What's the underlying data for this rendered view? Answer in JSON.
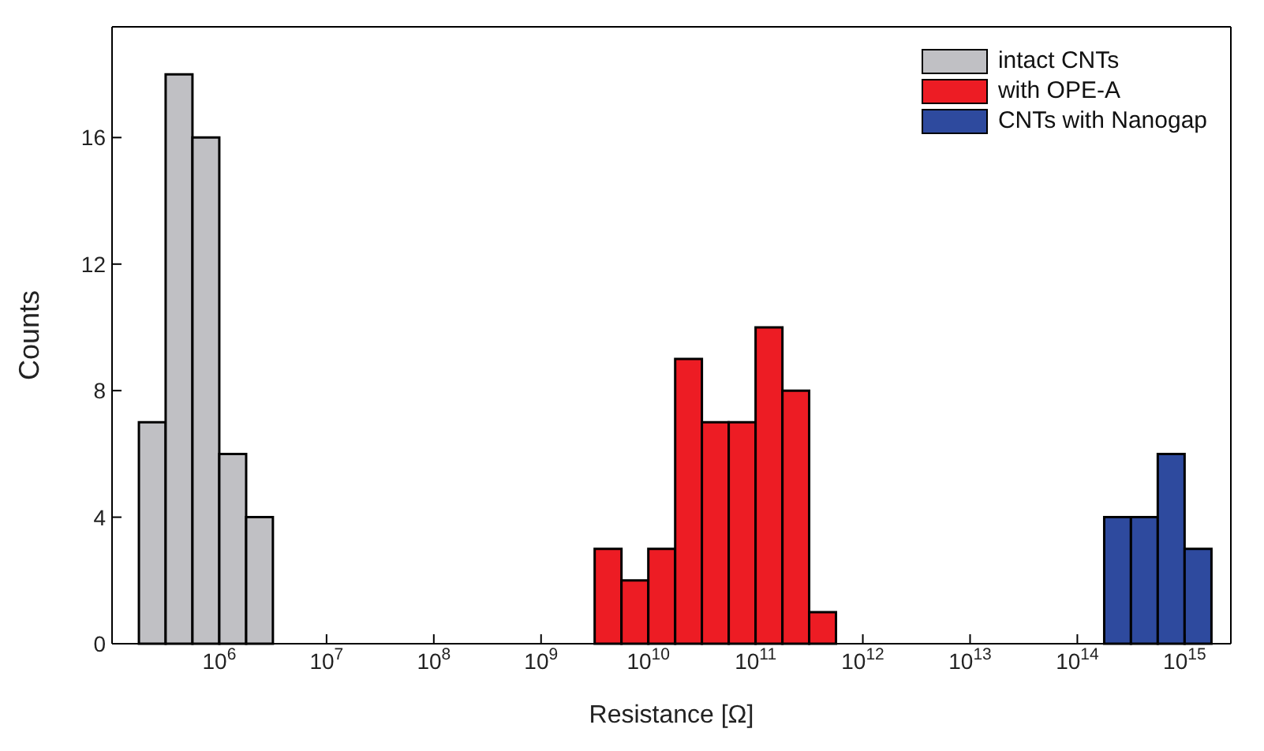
{
  "chart_data": {
    "type": "histogram",
    "xlabel": "Resistance [Ω]",
    "ylabel": "Counts",
    "log": "x",
    "legend": "top right",
    "xlim": [
      100000,
      2700000000000000.0
    ],
    "ylim": [
      0,
      19.5
    ],
    "yticks": [
      0,
      4,
      8,
      12,
      16
    ],
    "xticks": [
      {
        "value": 1000000.0,
        "label": "10$^{6}$"
      },
      {
        "value": 10000000.0,
        "label": "10$^{7}$"
      },
      {
        "value": 100000000.0,
        "label": "10$^{8}$"
      },
      {
        "value": 1000000000.0,
        "label": "10$^{9}$"
      },
      {
        "value": 10000000000.0,
        "label": "10$^{10}$"
      },
      {
        "value": 100000000000.0,
        "label": "10$^{11}$"
      },
      {
        "value": 1000000000000.0,
        "label": "10$^{12}$"
      },
      {
        "value": 10000000000000.0,
        "label": "10$^{13}$"
      },
      {
        "value": 100000000000000.0,
        "label": "10$^{14}$"
      },
      {
        "value": 1000000000000000.0,
        "label": "10$^{15}$"
      }
    ],
    "bins": [
      178000.0,
      316000.0,
      562000.0,
      1000000.0,
      1780000.0,
      3160000.0,
      5620000.0,
      10000000.0,
      17800000.0,
      31600000.0,
      56200000.0,
      100000000.0,
      178000000.0,
      316000000.0,
      562000000.0,
      1000000000.0,
      1780000000.0,
      3160000000.0,
      5620000000.0,
      10000000000.0,
      17800000000.0,
      31600000000.0,
      56200000000.0,
      100000000000.0,
      178000000000.0,
      316000000000.0,
      562000000000.0,
      1000000000000.0,
      1780000000000.0,
      3160000000000.0,
      5620000000000.0,
      10000000000000.0,
      17800000000000.0,
      31600000000000.0,
      56200000000000.0,
      100000000000000.0,
      178000000000000.0,
      316000000000000.0,
      562000000000000.0,
      1000000000000000.0,
      1780000000000000.0
    ],
    "series": [
      {
        "name": "intact CNTs",
        "color": "#c0c0c4",
        "values": [
          7,
          18,
          16,
          6,
          4,
          null,
          null,
          null,
          null,
          null,
          null,
          null,
          null,
          null,
          null,
          null,
          null,
          null,
          null,
          null,
          null,
          null,
          null,
          null,
          null,
          null,
          null,
          null,
          null,
          null,
          null,
          null,
          null,
          null,
          null,
          null,
          null,
          null,
          null,
          null
        ]
      },
      {
        "name": "with OPE-A",
        "color": "#ed1c24",
        "values": [
          null,
          null,
          null,
          null,
          null,
          null,
          null,
          null,
          null,
          null,
          null,
          null,
          null,
          null,
          null,
          null,
          null,
          3,
          2,
          3,
          9,
          7,
          7,
          10,
          8,
          1,
          null,
          null,
          null,
          null,
          null,
          null,
          null,
          null,
          null,
          null,
          null,
          null,
          null,
          null
        ]
      },
      {
        "name": "CNTs with Nanogap",
        "color": "#2e4a9e",
        "values": [
          null,
          null,
          null,
          null,
          null,
          null,
          null,
          null,
          null,
          null,
          null,
          null,
          null,
          null,
          null,
          null,
          null,
          null,
          null,
          null,
          null,
          null,
          null,
          null,
          null,
          null,
          null,
          null,
          null,
          null,
          null,
          null,
          null,
          null,
          null,
          null,
          4,
          4,
          6,
          3
        ]
      }
    ]
  }
}
